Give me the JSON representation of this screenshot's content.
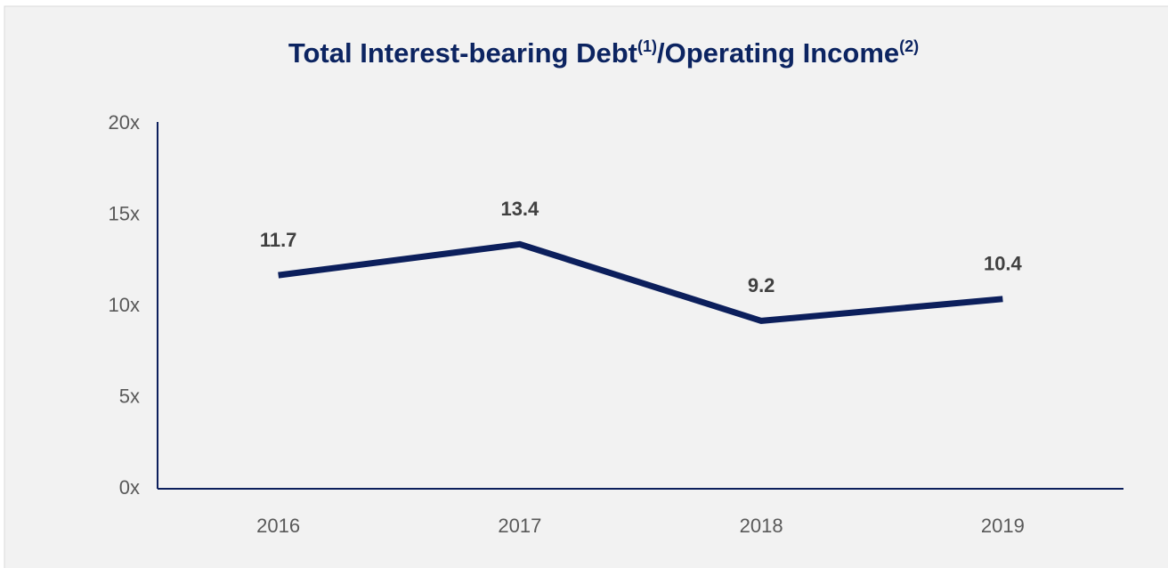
{
  "chart_data": {
    "type": "line",
    "title": [
      "Total Interest-bearing Debt",
      "(1)",
      "/Operating Income",
      "(2)"
    ],
    "categories": [
      "2016",
      "2017",
      "2018",
      "2019"
    ],
    "series": [
      {
        "color": "#0c1f5c",
        "values": [
          11.7,
          13.4,
          9.2,
          10.4
        ]
      }
    ],
    "ylim": [
      0,
      20
    ],
    "yticks": [
      {
        "value": 0,
        "label": "0x"
      },
      {
        "value": 5,
        "label": "5x"
      },
      {
        "value": 10,
        "label": "10x"
      },
      {
        "value": 15,
        "label": "15x"
      },
      {
        "value": 20,
        "label": "20x"
      }
    ],
    "grid": false
  }
}
